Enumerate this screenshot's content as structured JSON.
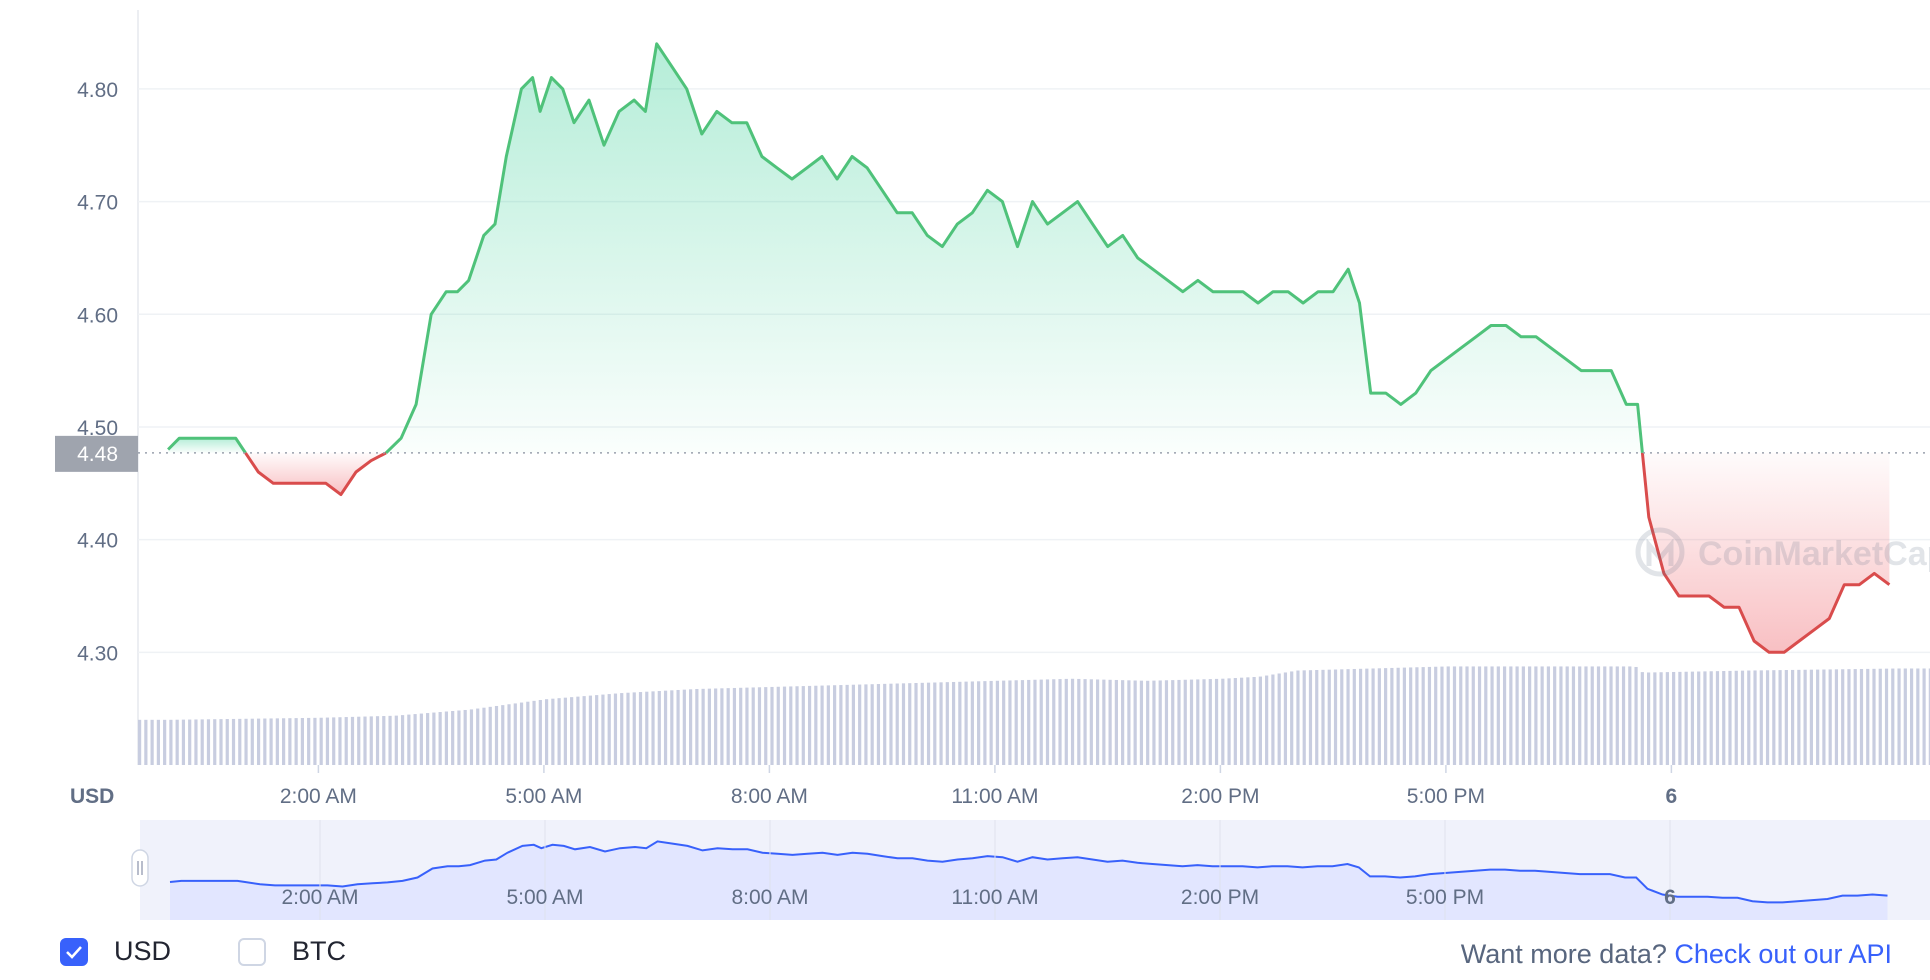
{
  "chart_data": {
    "type": "line",
    "currency_unit": "USD",
    "y_ticks": [
      "4.30",
      "4.40",
      "4.50",
      "4.60",
      "4.70",
      "4.80"
    ],
    "ylim": [
      4.2,
      4.87
    ],
    "x_ticks": [
      "2:00 AM",
      "5:00 AM",
      "8:00 AM",
      "11:00 AM",
      "2:00 PM",
      "5:00 PM",
      "6"
    ],
    "x_range_hours": [
      -0.4,
      23.6
    ],
    "reference_price": 4.477,
    "reference_label": "4.48",
    "watermark": "CoinMarketCap",
    "grid": true,
    "colors": {
      "up": "#16c784",
      "up_line": "#4fc27a",
      "down": "#ea3943",
      "down_line": "#d94c4c",
      "volume": "#c8cde0",
      "navigator_fill": "#e2e6ff",
      "navigator_line": "#3861fb"
    },
    "price_series": [
      [
        0.0,
        4.48
      ],
      [
        0.15,
        4.49
      ],
      [
        0.3,
        4.49
      ],
      [
        0.5,
        4.49
      ],
      [
        0.7,
        4.49
      ],
      [
        0.9,
        4.49
      ],
      [
        1.0,
        4.48
      ],
      [
        1.2,
        4.46
      ],
      [
        1.4,
        4.45
      ],
      [
        1.6,
        4.45
      ],
      [
        1.8,
        4.45
      ],
      [
        2.0,
        4.45
      ],
      [
        2.1,
        4.45
      ],
      [
        2.3,
        4.44
      ],
      [
        2.5,
        4.46
      ],
      [
        2.7,
        4.47
      ],
      [
        2.9,
        4.477
      ],
      [
        3.1,
        4.49
      ],
      [
        3.3,
        4.52
      ],
      [
        3.5,
        4.6
      ],
      [
        3.7,
        4.62
      ],
      [
        3.85,
        4.62
      ],
      [
        4.0,
        4.63
      ],
      [
        4.2,
        4.67
      ],
      [
        4.35,
        4.68
      ],
      [
        4.5,
        4.74
      ],
      [
        4.7,
        4.8
      ],
      [
        4.85,
        4.81
      ],
      [
        4.95,
        4.78
      ],
      [
        5.1,
        4.81
      ],
      [
        5.25,
        4.8
      ],
      [
        5.4,
        4.77
      ],
      [
        5.6,
        4.79
      ],
      [
        5.8,
        4.75
      ],
      [
        6.0,
        4.78
      ],
      [
        6.2,
        4.79
      ],
      [
        6.35,
        4.78
      ],
      [
        6.5,
        4.84
      ],
      [
        6.7,
        4.82
      ],
      [
        6.9,
        4.8
      ],
      [
        7.1,
        4.76
      ],
      [
        7.3,
        4.78
      ],
      [
        7.5,
        4.77
      ],
      [
        7.7,
        4.77
      ],
      [
        7.9,
        4.74
      ],
      [
        8.1,
        4.73
      ],
      [
        8.3,
        4.72
      ],
      [
        8.5,
        4.73
      ],
      [
        8.7,
        4.74
      ],
      [
        8.9,
        4.72
      ],
      [
        9.1,
        4.74
      ],
      [
        9.3,
        4.73
      ],
      [
        9.5,
        4.71
      ],
      [
        9.7,
        4.69
      ],
      [
        9.9,
        4.69
      ],
      [
        10.1,
        4.67
      ],
      [
        10.3,
        4.66
      ],
      [
        10.5,
        4.68
      ],
      [
        10.7,
        4.69
      ],
      [
        10.9,
        4.71
      ],
      [
        11.1,
        4.7
      ],
      [
        11.3,
        4.66
      ],
      [
        11.5,
        4.7
      ],
      [
        11.7,
        4.68
      ],
      [
        11.9,
        4.69
      ],
      [
        12.1,
        4.7
      ],
      [
        12.3,
        4.68
      ],
      [
        12.5,
        4.66
      ],
      [
        12.7,
        4.67
      ],
      [
        12.9,
        4.65
      ],
      [
        13.1,
        4.64
      ],
      [
        13.3,
        4.63
      ],
      [
        13.5,
        4.62
      ],
      [
        13.7,
        4.63
      ],
      [
        13.9,
        4.62
      ],
      [
        14.1,
        4.62
      ],
      [
        14.3,
        4.62
      ],
      [
        14.5,
        4.61
      ],
      [
        14.7,
        4.62
      ],
      [
        14.9,
        4.62
      ],
      [
        15.1,
        4.61
      ],
      [
        15.3,
        4.62
      ],
      [
        15.5,
        4.62
      ],
      [
        15.7,
        4.64
      ],
      [
        15.85,
        4.61
      ],
      [
        16.0,
        4.53
      ],
      [
        16.2,
        4.53
      ],
      [
        16.4,
        4.52
      ],
      [
        16.6,
        4.53
      ],
      [
        16.8,
        4.55
      ],
      [
        17.0,
        4.56
      ],
      [
        17.2,
        4.57
      ],
      [
        17.4,
        4.58
      ],
      [
        17.6,
        4.59
      ],
      [
        17.8,
        4.59
      ],
      [
        18.0,
        4.58
      ],
      [
        18.2,
        4.58
      ],
      [
        18.4,
        4.57
      ],
      [
        18.6,
        4.56
      ],
      [
        18.8,
        4.55
      ],
      [
        19.0,
        4.55
      ],
      [
        19.2,
        4.55
      ],
      [
        19.4,
        4.52
      ],
      [
        19.55,
        4.52
      ],
      [
        19.7,
        4.42
      ],
      [
        19.9,
        4.37
      ],
      [
        20.1,
        4.35
      ],
      [
        20.3,
        4.35
      ],
      [
        20.5,
        4.35
      ],
      [
        20.7,
        4.34
      ],
      [
        20.9,
        4.34
      ],
      [
        21.1,
        4.31
      ],
      [
        21.3,
        4.3
      ],
      [
        21.5,
        4.3
      ],
      [
        21.7,
        4.31
      ],
      [
        21.9,
        4.32
      ],
      [
        22.1,
        4.33
      ],
      [
        22.3,
        4.36
      ],
      [
        22.5,
        4.36
      ],
      [
        22.7,
        4.37
      ],
      [
        22.9,
        4.36
      ]
    ],
    "volume_series": [
      [
        0,
        2.2
      ],
      [
        2,
        2.3
      ],
      [
        3,
        2.4
      ],
      [
        4,
        2.7
      ],
      [
        5,
        3.2
      ],
      [
        6,
        3.5
      ],
      [
        7,
        3.7
      ],
      [
        8,
        3.8
      ],
      [
        9,
        3.9
      ],
      [
        10,
        4.0
      ],
      [
        11,
        4.1
      ],
      [
        12,
        4.2
      ],
      [
        13,
        4.1
      ],
      [
        14,
        4.2
      ],
      [
        14.5,
        4.3
      ],
      [
        15,
        4.6
      ],
      [
        16,
        4.7
      ],
      [
        17,
        4.8
      ],
      [
        19.5,
        4.8
      ],
      [
        19.6,
        4.5
      ],
      [
        21,
        4.6
      ],
      [
        23,
        4.7
      ],
      [
        23.5,
        4.7
      ]
    ]
  },
  "footer": {
    "currency_options": [
      {
        "label": "USD",
        "checked": true
      },
      {
        "label": "BTC",
        "checked": false
      }
    ],
    "api_prefix": "Want more data? ",
    "api_link": "Check out our API"
  }
}
